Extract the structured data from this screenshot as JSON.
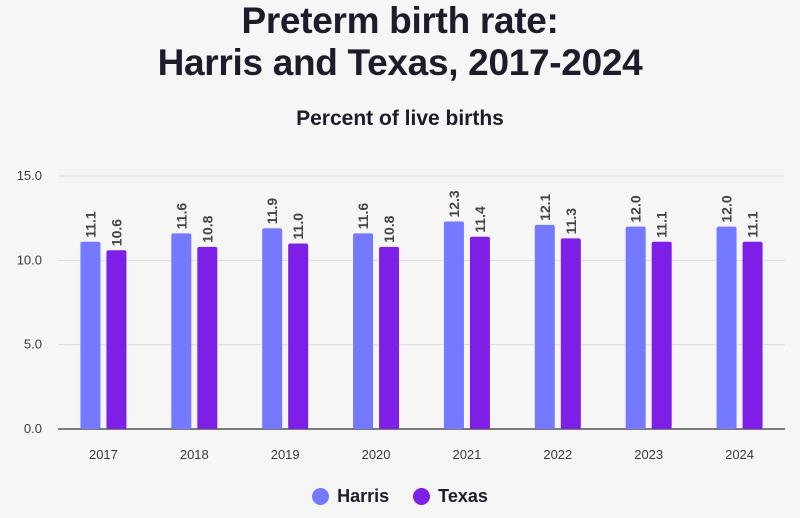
{
  "title_line1": "Preterm birth rate:",
  "title_line2": "Harris and Texas, 2017-2024",
  "subtitle": "Percent of live births",
  "colors": {
    "Harris": "#7479ff",
    "Texas": "#7d1fe6",
    "grid": "#dcdcdc",
    "axis": "#333333"
  },
  "chart_data": {
    "type": "bar",
    "title": "Preterm birth rate: Harris and Texas, 2017-2024",
    "subtitle": "Percent of live births",
    "categories": [
      "2017",
      "2018",
      "2019",
      "2020",
      "2021",
      "2022",
      "2023",
      "2024"
    ],
    "series": [
      {
        "name": "Harris",
        "values": [
          11.1,
          11.6,
          11.9,
          11.6,
          12.3,
          12.1,
          12.0,
          12.0
        ],
        "labels": [
          "11.1",
          "11.6",
          "11.9",
          "11.6",
          "12.3",
          "12.1",
          "12.0",
          "12.0"
        ]
      },
      {
        "name": "Texas",
        "values": [
          10.6,
          10.8,
          11.0,
          10.8,
          11.4,
          11.3,
          11.1,
          11.1
        ],
        "labels": [
          "10.6",
          "10.8",
          "11.0",
          "10.8",
          "11.4",
          "11.3",
          "11.1",
          "11.1"
        ]
      }
    ],
    "yticks": [
      "0.0",
      "5.0",
      "10.0",
      "15.0"
    ],
    "ylim": [
      0,
      15
    ],
    "grid": true,
    "legend": "bottom-center"
  }
}
